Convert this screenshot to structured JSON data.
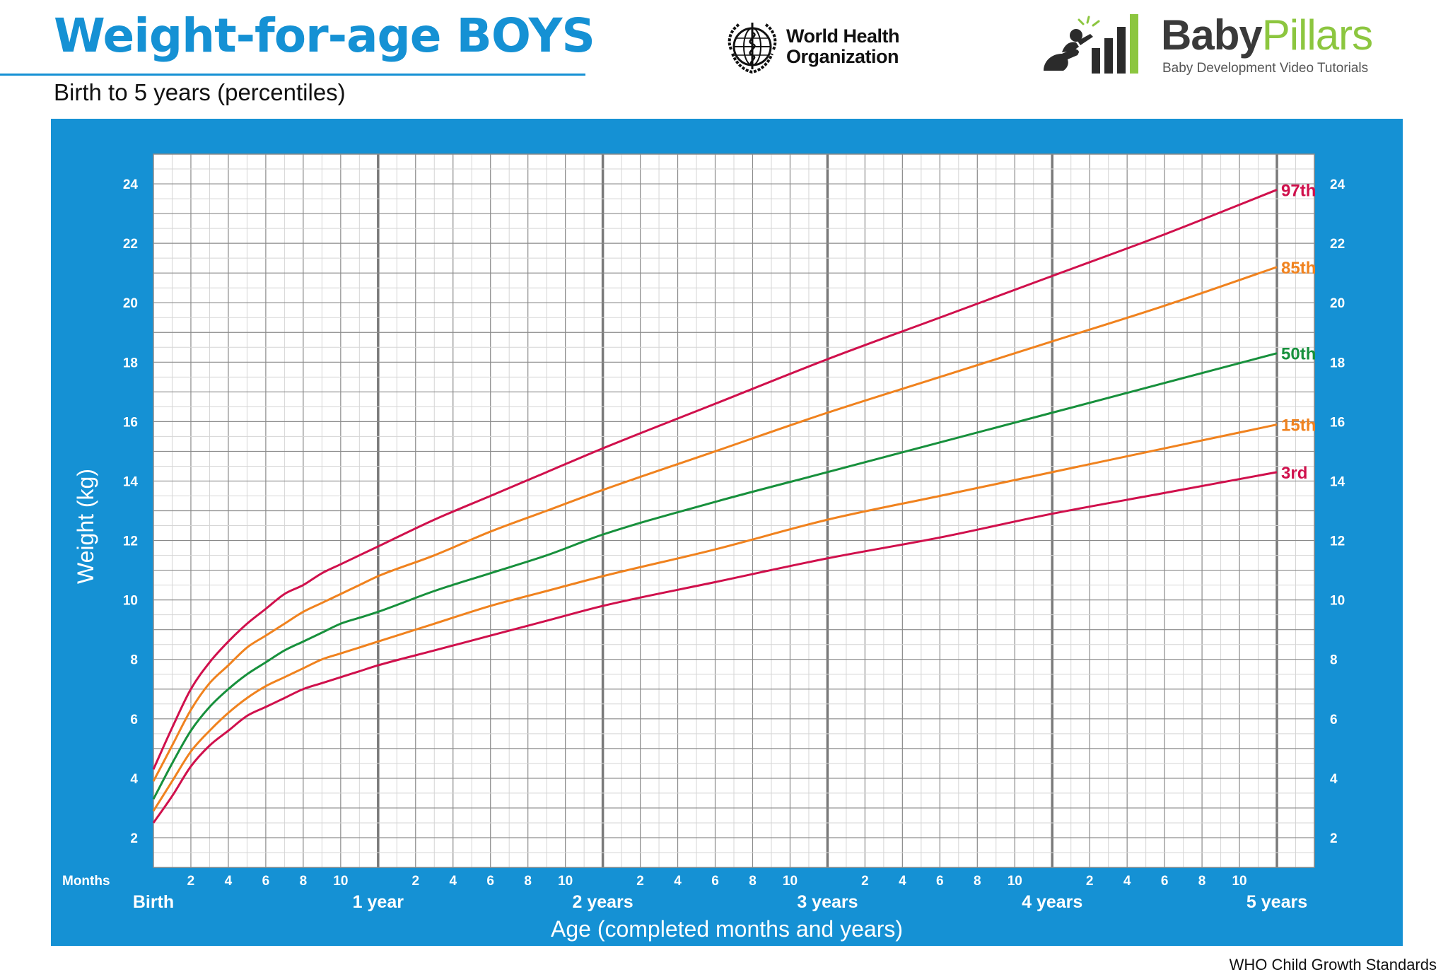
{
  "header": {
    "title": "Weight-for-age BOYS",
    "subtitle": "Birth to 5 years (percentiles)"
  },
  "logos": {
    "who_line1": "World Health",
    "who_line2": "Organization",
    "bp_name_part1": "Baby",
    "bp_name_part2": "Pillars",
    "bp_tagline": "Baby Development Video Tutorials"
  },
  "footer": {
    "source": "WHO Child Growth Standards"
  },
  "colors": {
    "brand_blue": "#1591d4",
    "grid_minor": "#d5d5d5",
    "grid_major": "#8a8a8a",
    "grid_year": "#7a7a7a",
    "p97_p3": "#d0104c",
    "p85_p15": "#f0821e",
    "p50": "#17903c",
    "bp_green": "#8cc63f"
  },
  "chart_data": {
    "type": "line",
    "xlabel": "Age (completed months and years)",
    "ylabel": "Weight (kg)",
    "x_unit_label": "Months",
    "xlim": [
      0,
      62
    ],
    "ylim": [
      1,
      25
    ],
    "y_ticks": [
      2,
      4,
      6,
      8,
      10,
      12,
      14,
      16,
      18,
      20,
      22,
      24
    ],
    "month_tick_labels": [
      "2",
      "4",
      "6",
      "8",
      "10"
    ],
    "year_labels": [
      {
        "age_months": 0,
        "label": "Birth"
      },
      {
        "age_months": 12,
        "label": "1 year"
      },
      {
        "age_months": 24,
        "label": "2 years"
      },
      {
        "age_months": 36,
        "label": "3 years"
      },
      {
        "age_months": 48,
        "label": "4 years"
      },
      {
        "age_months": 60,
        "label": "5 years"
      }
    ],
    "x": [
      0,
      1,
      2,
      3,
      4,
      5,
      6,
      7,
      8,
      9,
      10,
      11,
      12,
      15,
      18,
      21,
      24,
      30,
      36,
      42,
      48,
      54,
      60
    ],
    "series": [
      {
        "name": "97th",
        "color": "#d0104c",
        "values": [
          4.3,
          5.7,
          7.0,
          7.9,
          8.6,
          9.2,
          9.7,
          10.2,
          10.5,
          10.9,
          11.2,
          11.5,
          11.8,
          12.7,
          13.5,
          14.3,
          15.1,
          16.6,
          18.1,
          19.5,
          20.9,
          22.3,
          23.8
        ]
      },
      {
        "name": "85th",
        "color": "#f0821e",
        "values": [
          3.9,
          5.1,
          6.3,
          7.2,
          7.8,
          8.4,
          8.8,
          9.2,
          9.6,
          9.9,
          10.2,
          10.5,
          10.8,
          11.5,
          12.3,
          13.0,
          13.7,
          15.0,
          16.3,
          17.5,
          18.7,
          19.9,
          21.2
        ]
      },
      {
        "name": "50th",
        "color": "#17903c",
        "values": [
          3.3,
          4.5,
          5.6,
          6.4,
          7.0,
          7.5,
          7.9,
          8.3,
          8.6,
          8.9,
          9.2,
          9.4,
          9.6,
          10.3,
          10.9,
          11.5,
          12.2,
          13.3,
          14.3,
          15.3,
          16.3,
          17.3,
          18.3
        ]
      },
      {
        "name": "15th",
        "color": "#f0821e",
        "values": [
          2.9,
          3.9,
          4.9,
          5.6,
          6.2,
          6.7,
          7.1,
          7.4,
          7.7,
          8.0,
          8.2,
          8.4,
          8.6,
          9.2,
          9.8,
          10.3,
          10.8,
          11.7,
          12.7,
          13.5,
          14.3,
          15.1,
          15.9
        ]
      },
      {
        "name": "3rd",
        "color": "#d0104c",
        "values": [
          2.5,
          3.4,
          4.4,
          5.1,
          5.6,
          6.1,
          6.4,
          6.7,
          7.0,
          7.2,
          7.4,
          7.6,
          7.8,
          8.3,
          8.8,
          9.3,
          9.8,
          10.6,
          11.4,
          12.1,
          12.9,
          13.6,
          14.3
        ]
      }
    ]
  }
}
